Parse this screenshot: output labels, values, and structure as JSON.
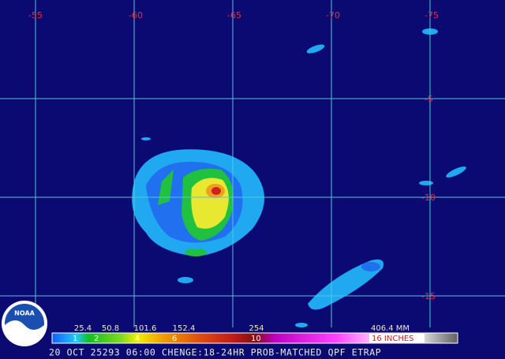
{
  "map": {
    "lon_labels": [
      "-55",
      "-60",
      "-65",
      "-70",
      "-75"
    ],
    "lat_labels": [
      "-5",
      "-10",
      "-15"
    ]
  },
  "legend": {
    "mm_labels": [
      "25.4",
      "50.8",
      "101.6",
      "152.4",
      "254",
      "406.4 MM"
    ],
    "inch_labels": [
      "1",
      "2",
      "4",
      "6",
      "10",
      "16 INCHES"
    ]
  },
  "footer": "20 OCT 25293 06:00 CHENGE:18-24HR PROB-MATCHED QPF ETRAP",
  "logo": "NOAA"
}
